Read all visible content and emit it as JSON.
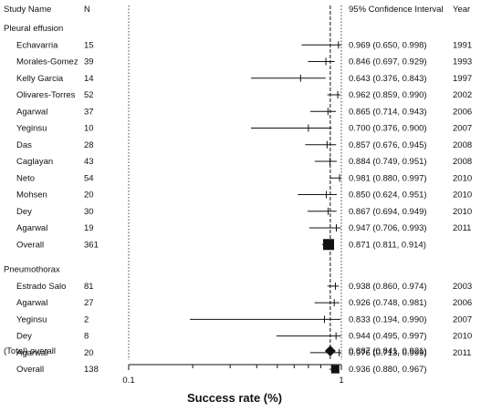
{
  "chart_data": {
    "type": "forest",
    "headers": {
      "study": "Study Name",
      "n": "N",
      "ci": "95% Confidence Interval",
      "year": "Year"
    },
    "xlabel": "Success rate (%)",
    "x_scale": "log",
    "xlim": [
      0.1,
      1.0
    ],
    "x_ticks": [
      "0.1",
      "1"
    ],
    "rows": [
      {
        "kind": "group",
        "label": "Pleural effusion"
      },
      {
        "kind": "study",
        "label": "Echavarria",
        "n": "15",
        "est": 0.969,
        "lo": 0.65,
        "hi": 0.998,
        "ci_text": "0.969 (0.650, 0.998)",
        "year": "1991"
      },
      {
        "kind": "study",
        "label": "Morales-Gomez",
        "n": "39",
        "est": 0.846,
        "lo": 0.697,
        "hi": 0.929,
        "ci_text": "0.846 (0.697, 0.929)",
        "year": "1993"
      },
      {
        "kind": "study",
        "label": "Kelly Garcia",
        "n": "14",
        "est": 0.643,
        "lo": 0.376,
        "hi": 0.843,
        "ci_text": "0.643 (0.376, 0.843)",
        "year": "1997"
      },
      {
        "kind": "study",
        "label": "Olivares-Torres",
        "n": "52",
        "est": 0.962,
        "lo": 0.859,
        "hi": 0.99,
        "ci_text": "0.962 (0.859, 0.990)",
        "year": "2002"
      },
      {
        "kind": "study",
        "label": "Agarwal",
        "n": "37",
        "est": 0.865,
        "lo": 0.714,
        "hi": 0.943,
        "ci_text": "0.865 (0.714, 0.943)",
        "year": "2006"
      },
      {
        "kind": "study",
        "label": "Yeginsu",
        "n": "10",
        "est": 0.7,
        "lo": 0.376,
        "hi": 0.9,
        "ci_text": "0.700 (0.376, 0.900)",
        "year": "2007"
      },
      {
        "kind": "study",
        "label": "Das",
        "n": "28",
        "est": 0.857,
        "lo": 0.676,
        "hi": 0.945,
        "ci_text": "0.857 (0.676, 0.945)",
        "year": "2008"
      },
      {
        "kind": "study",
        "label": "Caglayan",
        "n": "43",
        "est": 0.884,
        "lo": 0.749,
        "hi": 0.951,
        "ci_text": "0.884 (0.749, 0.951)",
        "year": "2008"
      },
      {
        "kind": "study",
        "label": "Neto",
        "n": "54",
        "est": 0.981,
        "lo": 0.88,
        "hi": 0.997,
        "ci_text": "0.981 (0.880, 0.997)",
        "year": "2010"
      },
      {
        "kind": "study",
        "label": "Mohsen",
        "n": "20",
        "est": 0.85,
        "lo": 0.624,
        "hi": 0.951,
        "ci_text": "0.850 (0.624, 0.951)",
        "year": "2010"
      },
      {
        "kind": "study",
        "label": "Dey",
        "n": "30",
        "est": 0.867,
        "lo": 0.694,
        "hi": 0.949,
        "ci_text": "0.867 (0.694, 0.949)",
        "year": "2010"
      },
      {
        "kind": "study",
        "label": "Agarwal",
        "n": "19",
        "est": 0.947,
        "lo": 0.706,
        "hi": 0.993,
        "ci_text": "0.947 (0.706, 0.993)",
        "year": "2011"
      },
      {
        "kind": "overall",
        "label": "Overall",
        "n": "361",
        "est": 0.871,
        "lo": 0.811,
        "hi": 0.914,
        "ci_text": "0.871 (0.811, 0.914)",
        "year": ""
      },
      {
        "kind": "spacer"
      },
      {
        "kind": "group",
        "label": "Pneumothorax"
      },
      {
        "kind": "study",
        "label": "Estrado Salo",
        "n": "81",
        "est": 0.938,
        "lo": 0.86,
        "hi": 0.974,
        "ci_text": "0.938 (0.860, 0.974)",
        "year": "2003"
      },
      {
        "kind": "study",
        "label": "Agarwal",
        "n": "27",
        "est": 0.926,
        "lo": 0.748,
        "hi": 0.981,
        "ci_text": "0.926 (0.748, 0.981)",
        "year": "2006"
      },
      {
        "kind": "study",
        "label": "Yeginsu",
        "n": "2",
        "est": 0.833,
        "lo": 0.194,
        "hi": 0.99,
        "ci_text": "0.833 (0.194, 0.990)",
        "year": "2007"
      },
      {
        "kind": "study",
        "label": "Dey",
        "n": "8",
        "est": 0.944,
        "lo": 0.495,
        "hi": 0.997,
        "ci_text": "0.944 (0.495, 0.997)",
        "year": "2010"
      },
      {
        "kind": "study",
        "label": "Agarwal",
        "n": "20",
        "est": 0.976,
        "lo": 0.713,
        "hi": 0.999,
        "ci_text": "0.976 (0.713, 0.999)",
        "year": "2011"
      },
      {
        "kind": "overall",
        "label": "Overall",
        "n": "138",
        "est": 0.936,
        "lo": 0.88,
        "hi": 0.967,
        "ci_text": "0.936 (0.880, 0.967)",
        "year": ""
      }
    ],
    "total": {
      "label": "(Total) overall",
      "est": 0.887,
      "lo": 0.841,
      "hi": 0.921,
      "ci_text": "0.887 (0.841, 0.921)"
    },
    "reference_line": 0.887
  }
}
